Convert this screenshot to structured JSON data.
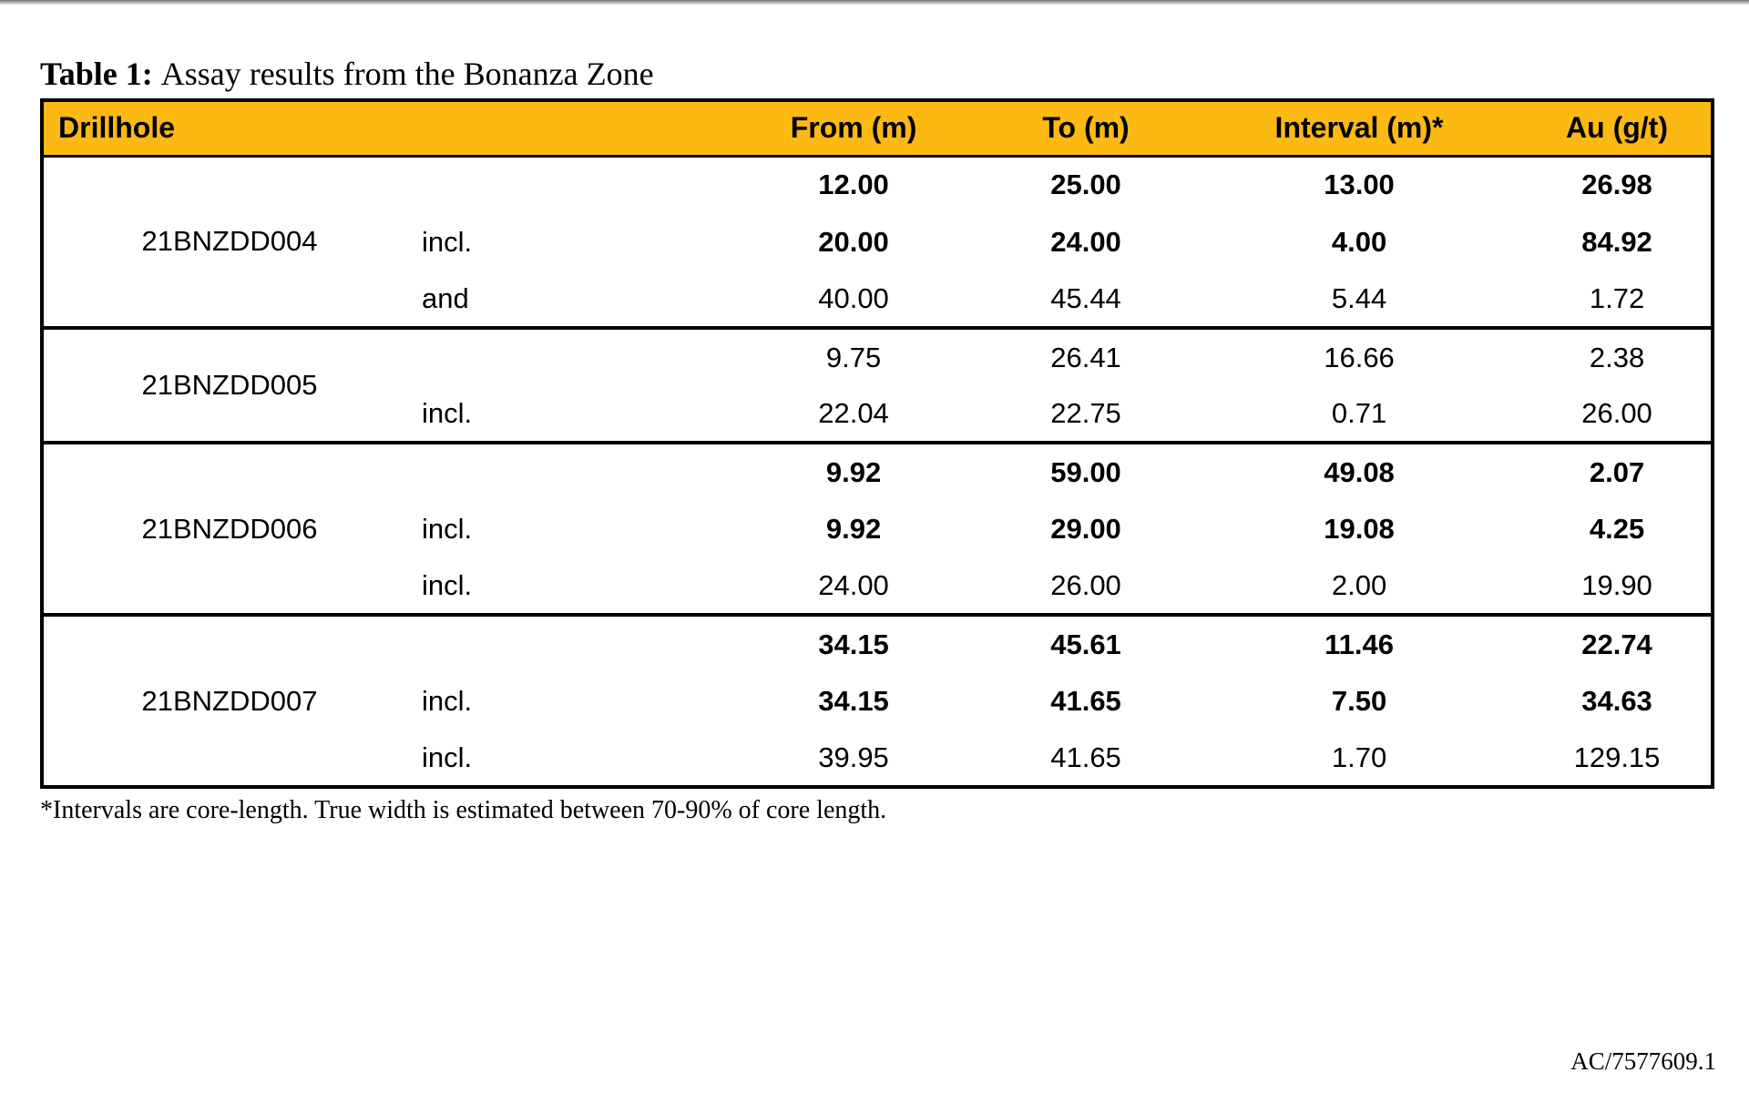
{
  "page": {
    "caption_label": "Table 1:",
    "caption_text": "Assay results from the Bonanza Zone",
    "footnote": "*Intervals are core-length. True width is estimated between 70-90% of core length.",
    "doc_reference": "AC/7577609.1"
  },
  "table": {
    "accent_color": "#FDB913",
    "header": {
      "drillhole": "Drillhole",
      "from": "From (m)",
      "to": "To (m)",
      "interval": "Interval (m)*",
      "au": "Au (g/t)"
    },
    "groups": [
      {
        "drillhole": "21BNZDD004",
        "rows": [
          {
            "label": "",
            "from": "12.00",
            "to": "25.00",
            "interval": "13.00",
            "au": "26.98",
            "bold": true
          },
          {
            "label": "incl.",
            "from": "20.00",
            "to": "24.00",
            "interval": "4.00",
            "au": "84.92",
            "bold": true
          },
          {
            "label": "and",
            "from": "40.00",
            "to": "45.44",
            "interval": "5.44",
            "au": "1.72",
            "bold": false
          }
        ]
      },
      {
        "drillhole": "21BNZDD005",
        "rows": [
          {
            "label": "",
            "from": "9.75",
            "to": "26.41",
            "interval": "16.66",
            "au": "2.38",
            "bold": false
          },
          {
            "label": "incl.",
            "from": "22.04",
            "to": "22.75",
            "interval": "0.71",
            "au": "26.00",
            "bold": false
          }
        ]
      },
      {
        "drillhole": "21BNZDD006",
        "rows": [
          {
            "label": "",
            "from": "9.92",
            "to": "59.00",
            "interval": "49.08",
            "au": "2.07",
            "bold": true
          },
          {
            "label": "incl.",
            "from": "9.92",
            "to": "29.00",
            "interval": "19.08",
            "au": "4.25",
            "bold": true
          },
          {
            "label": "incl.",
            "from": "24.00",
            "to": "26.00",
            "interval": "2.00",
            "au": "19.90",
            "bold": false
          }
        ]
      },
      {
        "drillhole": "21BNZDD007",
        "rows": [
          {
            "label": "",
            "from": "34.15",
            "to": "45.61",
            "interval": "11.46",
            "au": "22.74",
            "bold": true
          },
          {
            "label": "incl.",
            "from": "34.15",
            "to": "41.65",
            "interval": "7.50",
            "au": "34.63",
            "bold": true
          },
          {
            "label": "incl.",
            "from": "39.95",
            "to": "41.65",
            "interval": "1.70",
            "au": "129.15",
            "bold": false
          }
        ]
      }
    ]
  }
}
